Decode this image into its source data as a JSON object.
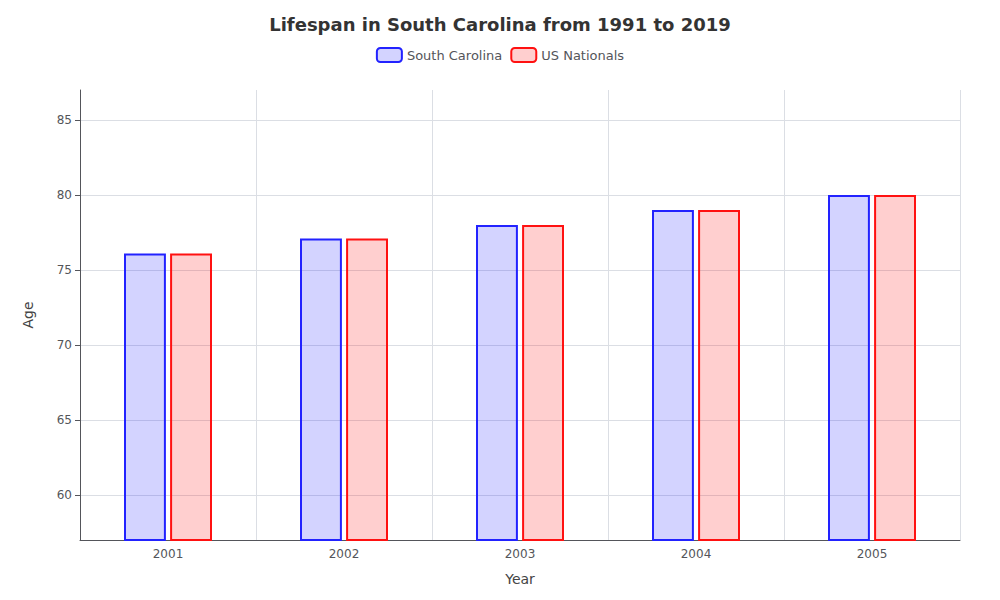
{
  "chart_data": {
    "type": "bar",
    "title": "Lifespan in South Carolina from 1991 to 2019",
    "x_label": "Year",
    "y_label": "Age",
    "categories": [
      "2001",
      "2002",
      "2003",
      "2004",
      "2005"
    ],
    "series": [
      {
        "name": "South Carolina",
        "color": "#2222FF",
        "values": [
          76.1,
          77.1,
          78.0,
          79.0,
          80.0
        ]
      },
      {
        "name": "US Nationals",
        "color": "#FF1111",
        "values": [
          76.1,
          77.1,
          78.0,
          79.0,
          80.0
        ]
      }
    ],
    "ylim": [
      57,
      87
    ],
    "yticks": [
      60,
      65,
      70,
      75,
      80,
      85
    ],
    "grid": true,
    "legend": "top"
  }
}
